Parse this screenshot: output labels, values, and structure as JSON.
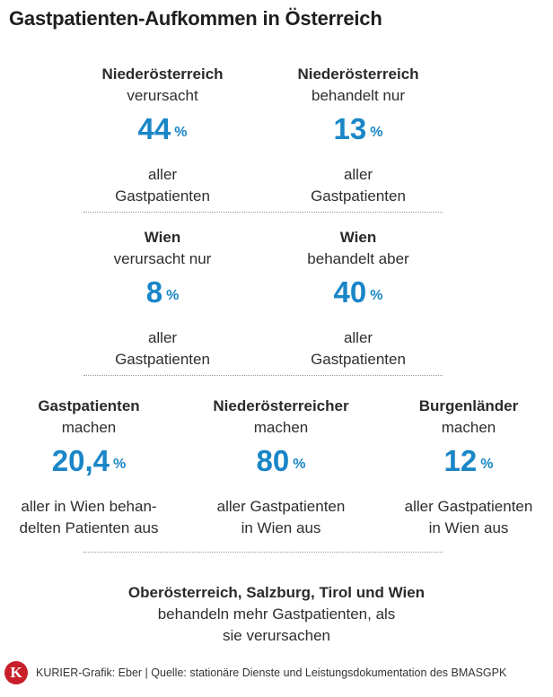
{
  "title": "Gastpatienten-Aufkommen in Österreich",
  "row1": [
    {
      "head": "Niederösterreich",
      "sub": "verursacht",
      "value": "44",
      "unit": "%",
      "line1": "aller",
      "line2": "Gastpatienten"
    },
    {
      "head": "Niederösterreich",
      "sub": "behandelt nur",
      "value": "13",
      "unit": "%",
      "line1": "aller",
      "line2": "Gastpatienten"
    }
  ],
  "row2": [
    {
      "head": "Wien",
      "sub": "verursacht nur",
      "value": "8",
      "unit": "%",
      "line1": "aller",
      "line2": "Gastpatienten"
    },
    {
      "head": "Wien",
      "sub": "behandelt aber",
      "value": "40",
      "unit": "%",
      "line1": "aller",
      "line2": "Gastpatienten"
    }
  ],
  "row3": [
    {
      "head": "Gastpatienten",
      "sub": "machen",
      "value": "20,4",
      "unit": "%",
      "line1": "aller in Wien behan-",
      "line2": "delten Patienten aus"
    },
    {
      "head": "Niederösterreicher",
      "sub": "machen",
      "value": "80",
      "unit": "%",
      "line1": "aller Gastpatienten",
      "line2": "in Wien aus"
    },
    {
      "head": "Burgenländer",
      "sub": "machen",
      "value": "12",
      "unit": "%",
      "line1": "aller Gastpatienten",
      "line2": "in Wien aus"
    }
  ],
  "final": {
    "head": "Oberösterreich, Salzburg, Tirol und Wien",
    "line1": "behandeln mehr Gastpatienten, als",
    "line2": "sie verursachen"
  },
  "footer": {
    "logo_letter": "K",
    "source": "KURIER-Grafik: Eber | Quelle: stationäre Dienste und Leistungsdokumentation des BMASGPK"
  },
  "colors": {
    "accent": "#1a86c7",
    "logo": "#c8202a"
  }
}
